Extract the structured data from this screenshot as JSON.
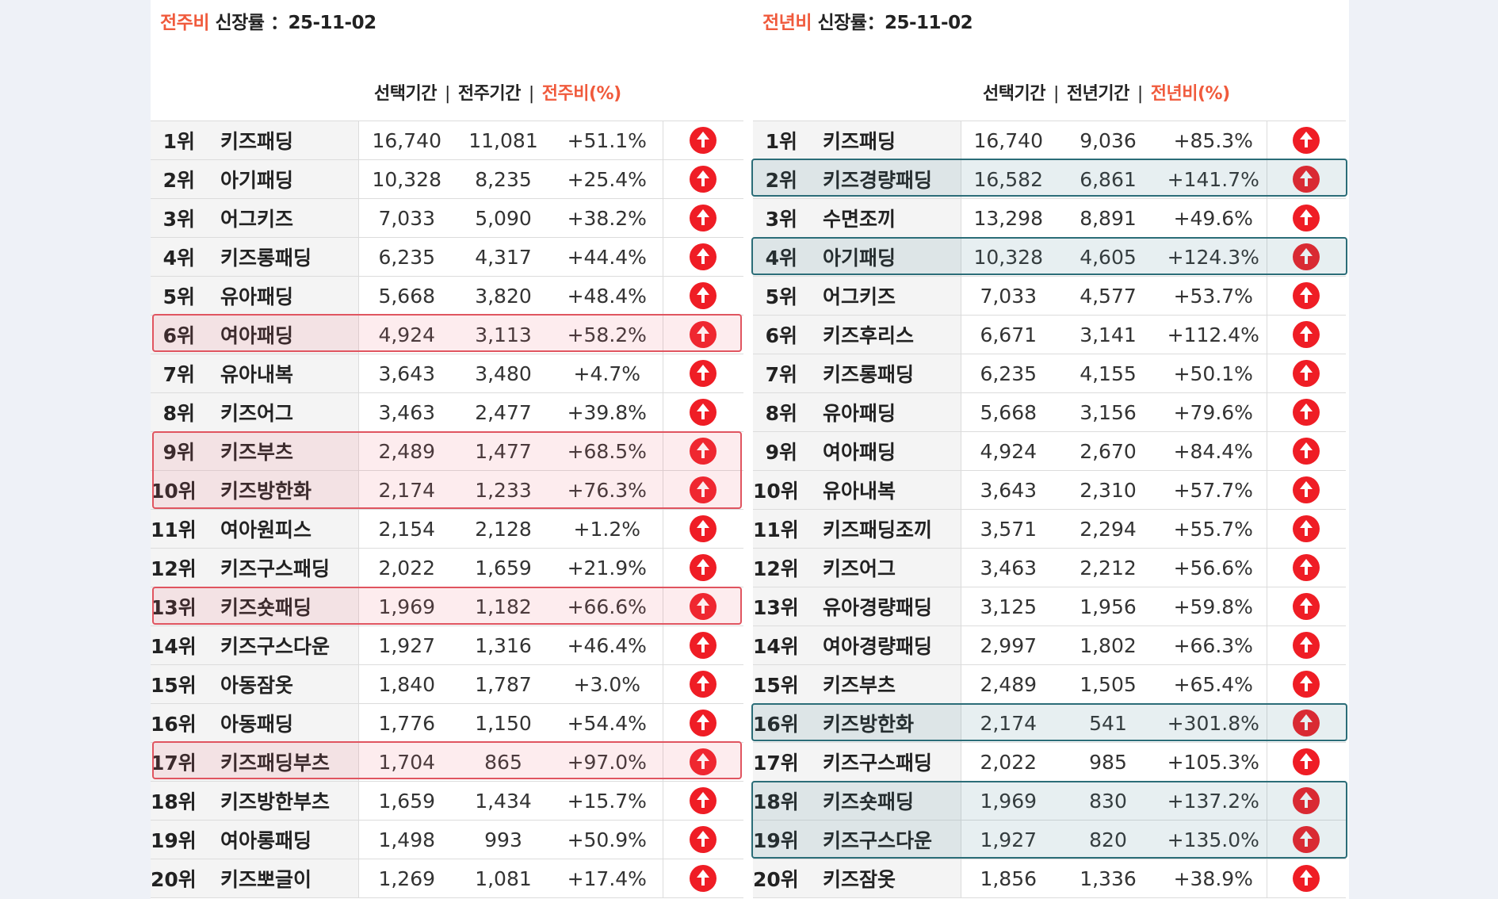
{
  "left": {
    "title_accent": "전주비",
    "title_rest": " 신장률 ：25-11-02",
    "headers": {
      "selected": "선택기간",
      "compare": "전주기간",
      "ratio": "전주비(%)"
    },
    "rows": [
      {
        "rank": "1위",
        "keyword": "키즈패딩",
        "selected": "16,740",
        "compare": "11,081",
        "ratio": "+51.1%"
      },
      {
        "rank": "2위",
        "keyword": "아기패딩",
        "selected": "10,328",
        "compare": "8,235",
        "ratio": "+25.4%"
      },
      {
        "rank": "3위",
        "keyword": "어그키즈",
        "selected": "7,033",
        "compare": "5,090",
        "ratio": "+38.2%"
      },
      {
        "rank": "4위",
        "keyword": "키즈롱패딩",
        "selected": "6,235",
        "compare": "4,317",
        "ratio": "+44.4%"
      },
      {
        "rank": "5위",
        "keyword": "유아패딩",
        "selected": "5,668",
        "compare": "3,820",
        "ratio": "+48.4%"
      },
      {
        "rank": "6위",
        "keyword": "여아패딩",
        "selected": "4,924",
        "compare": "3,113",
        "ratio": "+58.2%"
      },
      {
        "rank": "7위",
        "keyword": "유아내복",
        "selected": "3,643",
        "compare": "3,480",
        "ratio": "+4.7%"
      },
      {
        "rank": "8위",
        "keyword": "키즈어그",
        "selected": "3,463",
        "compare": "2,477",
        "ratio": "+39.8%"
      },
      {
        "rank": "9위",
        "keyword": "키즈부츠",
        "selected": "2,489",
        "compare": "1,477",
        "ratio": "+68.5%"
      },
      {
        "rank": "10위",
        "keyword": "키즈방한화",
        "selected": "2,174",
        "compare": "1,233",
        "ratio": "+76.3%"
      },
      {
        "rank": "11위",
        "keyword": "여아원피스",
        "selected": "2,154",
        "compare": "2,128",
        "ratio": "+1.2%"
      },
      {
        "rank": "12위",
        "keyword": "키즈구스패딩",
        "selected": "2,022",
        "compare": "1,659",
        "ratio": "+21.9%"
      },
      {
        "rank": "13위",
        "keyword": "키즈숏패딩",
        "selected": "1,969",
        "compare": "1,182",
        "ratio": "+66.6%"
      },
      {
        "rank": "14위",
        "keyword": "키즈구스다운",
        "selected": "1,927",
        "compare": "1,316",
        "ratio": "+46.4%"
      },
      {
        "rank": "15위",
        "keyword": "아동잠옷",
        "selected": "1,840",
        "compare": "1,787",
        "ratio": "+3.0%"
      },
      {
        "rank": "16위",
        "keyword": "아동패딩",
        "selected": "1,776",
        "compare": "1,150",
        "ratio": "+54.4%"
      },
      {
        "rank": "17위",
        "keyword": "키즈패딩부츠",
        "selected": "1,704",
        "compare": "865",
        "ratio": "+97.0%"
      },
      {
        "rank": "18위",
        "keyword": "키즈방한부츠",
        "selected": "1,659",
        "compare": "1,434",
        "ratio": "+15.7%"
      },
      {
        "rank": "19위",
        "keyword": "여아롱패딩",
        "selected": "1,498",
        "compare": "993",
        "ratio": "+50.9%"
      },
      {
        "rank": "20위",
        "keyword": "키즈뽀글이",
        "selected": "1,269",
        "compare": "1,081",
        "ratio": "+17.4%"
      }
    ]
  },
  "right": {
    "title_accent": "전년비",
    "title_rest": " 신장률：25-11-02",
    "headers": {
      "selected": "선택기간",
      "compare": "전년기간",
      "ratio": "전년비(%)"
    },
    "rows": [
      {
        "rank": "1위",
        "keyword": "키즈패딩",
        "selected": "16,740",
        "compare": "9,036",
        "ratio": "+85.3%"
      },
      {
        "rank": "2위",
        "keyword": "키즈경량패딩",
        "selected": "16,582",
        "compare": "6,861",
        "ratio": "+141.7%"
      },
      {
        "rank": "3위",
        "keyword": "수면조끼",
        "selected": "13,298",
        "compare": "8,891",
        "ratio": "+49.6%"
      },
      {
        "rank": "4위",
        "keyword": "아기패딩",
        "selected": "10,328",
        "compare": "4,605",
        "ratio": "+124.3%"
      },
      {
        "rank": "5위",
        "keyword": "어그키즈",
        "selected": "7,033",
        "compare": "4,577",
        "ratio": "+53.7%"
      },
      {
        "rank": "6위",
        "keyword": "키즈후리스",
        "selected": "6,671",
        "compare": "3,141",
        "ratio": "+112.4%"
      },
      {
        "rank": "7위",
        "keyword": "키즈롱패딩",
        "selected": "6,235",
        "compare": "4,155",
        "ratio": "+50.1%"
      },
      {
        "rank": "8위",
        "keyword": "유아패딩",
        "selected": "5,668",
        "compare": "3,156",
        "ratio": "+79.6%"
      },
      {
        "rank": "9위",
        "keyword": "여아패딩",
        "selected": "4,924",
        "compare": "2,670",
        "ratio": "+84.4%"
      },
      {
        "rank": "10위",
        "keyword": "유아내복",
        "selected": "3,643",
        "compare": "2,310",
        "ratio": "+57.7%"
      },
      {
        "rank": "11위",
        "keyword": "키즈패딩조끼",
        "selected": "3,571",
        "compare": "2,294",
        "ratio": "+55.7%"
      },
      {
        "rank": "12위",
        "keyword": "키즈어그",
        "selected": "3,463",
        "compare": "2,212",
        "ratio": "+56.6%"
      },
      {
        "rank": "13위",
        "keyword": "유아경량패딩",
        "selected": "3,125",
        "compare": "1,956",
        "ratio": "+59.8%"
      },
      {
        "rank": "14위",
        "keyword": "여아경량패딩",
        "selected": "2,997",
        "compare": "1,802",
        "ratio": "+66.3%"
      },
      {
        "rank": "15위",
        "keyword": "키즈부츠",
        "selected": "2,489",
        "compare": "1,505",
        "ratio": "+65.4%"
      },
      {
        "rank": "16위",
        "keyword": "키즈방한화",
        "selected": "2,174",
        "compare": "541",
        "ratio": "+301.8%"
      },
      {
        "rank": "17위",
        "keyword": "키즈구스패딩",
        "selected": "2,022",
        "compare": "985",
        "ratio": "+105.3%"
      },
      {
        "rank": "18위",
        "keyword": "키즈숏패딩",
        "selected": "1,969",
        "compare": "830",
        "ratio": "+137.2%"
      },
      {
        "rank": "19위",
        "keyword": "키즈구스다운",
        "selected": "1,927",
        "compare": "820",
        "ratio": "+135.0%"
      },
      {
        "rank": "20위",
        "keyword": "키즈잠옷",
        "selected": "1,856",
        "compare": "1,336",
        "ratio": "+38.9%"
      }
    ]
  },
  "icon": "arrow-up-circle-icon",
  "colors": {
    "accent": "#f05a3c",
    "up_icon": "#ef1d25",
    "highlight_red": "#e05560",
    "highlight_teal": "#2b6d78"
  }
}
